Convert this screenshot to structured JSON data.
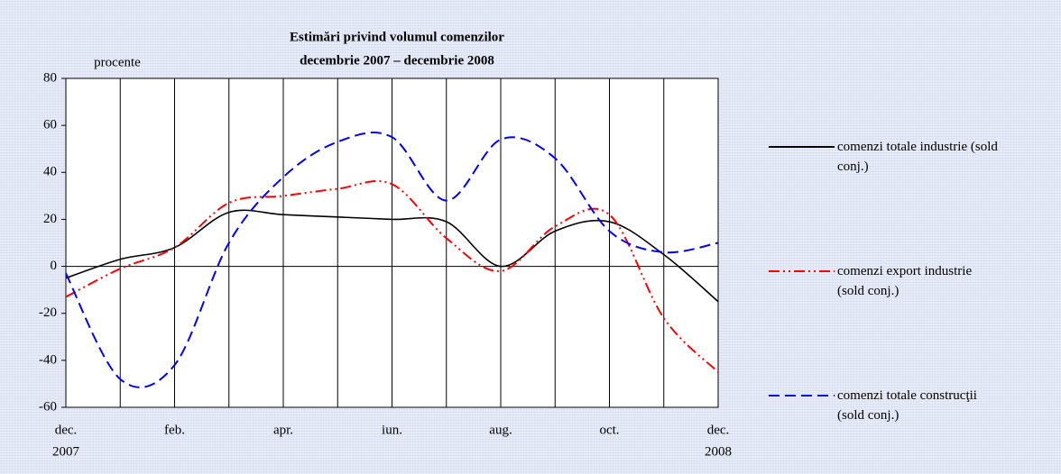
{
  "chart_data": {
    "type": "line",
    "title": "Estimări privind volumul comenzilor",
    "subtitle": "decembrie 2007 – decembrie 2008",
    "y_label": "procente",
    "categories": [
      "dec.",
      null,
      "feb.",
      null,
      "apr.",
      null,
      "iun.",
      null,
      "aug.",
      null,
      "oct.",
      null,
      "dec."
    ],
    "year_labels": [
      "2007",
      "2008"
    ],
    "series": [
      {
        "name": "comenzi totale industrie (sold conj.)",
        "color": "#000000",
        "values": [
          -5,
          3,
          8,
          23,
          22,
          21,
          20,
          19,
          0,
          15,
          19,
          5,
          -15
        ]
      },
      {
        "name": "comenzi export industrie (sold conj.)",
        "color": "#ff0000",
        "values": [
          -13,
          -1,
          8,
          27,
          30,
          33,
          35,
          12,
          -2,
          17,
          22,
          -22,
          -45
        ]
      },
      {
        "name": "comenzi totale construcţii (sold conj.)",
        "color": "#0000ff",
        "values": [
          -3,
          -48,
          -42,
          10,
          38,
          53,
          55,
          28,
          54,
          46,
          15,
          6,
          10
        ]
      }
    ],
    "ylim": [
      -60,
      80
    ],
    "yticks": [
      -60,
      -40,
      -20,
      0,
      20,
      40,
      60,
      80
    ]
  }
}
